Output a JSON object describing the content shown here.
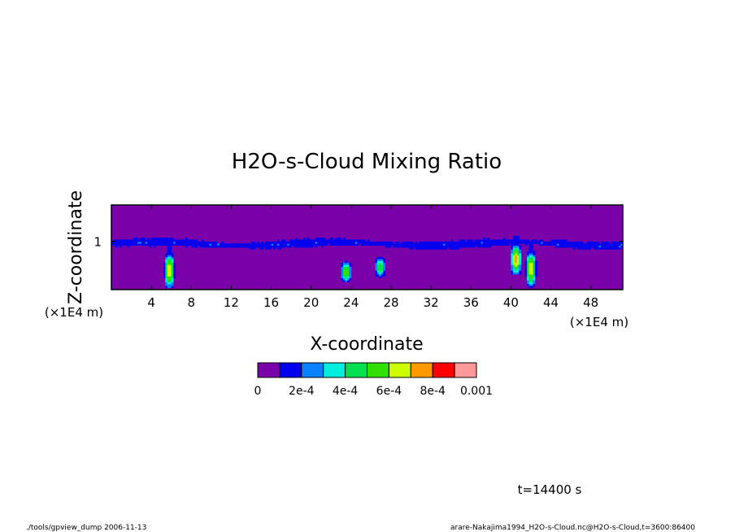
{
  "chart_data": {
    "type": "heatmap",
    "title": "H2O-s-Cloud Mixing Ratio",
    "xlabel": "X-coordinate",
    "ylabel": "Z-coordinate",
    "x_unit": "(×1E4 m)",
    "y_unit": "(×1E4 m)",
    "xlim": [
      0,
      51.2
    ],
    "ylim": [
      0,
      1.75
    ],
    "x_ticks": [
      4,
      8,
      12,
      16,
      20,
      24,
      28,
      32,
      36,
      40,
      44,
      48
    ],
    "y_ticks": [
      1
    ],
    "colorbar": {
      "levels": [
        0,
        0.0001,
        0.0002,
        0.0003,
        0.0004,
        0.0005,
        0.0006,
        0.0007,
        0.0008,
        0.0009,
        0.001
      ],
      "labels": [
        "0",
        "2e-4",
        "4e-4",
        "6e-4",
        "8e-4",
        "0.001"
      ],
      "label_values": [
        0,
        0.0002,
        0.0004,
        0.0006,
        0.0008,
        0.001
      ],
      "colors": [
        "#7a00aa",
        "#0000ee",
        "#0a82ff",
        "#00eedd",
        "#00e050",
        "#30e000",
        "#ccff00",
        "#ff9900",
        "#ff0000",
        "#ff9999"
      ]
    },
    "cloud_layer": {
      "z_center": 0.95,
      "z_halfwidth_max": 0.12,
      "typical_value": 0.00015
    },
    "cells": [
      {
        "x": 5.8,
        "z_bottom": 0.02,
        "z_top": 0.75,
        "max_value": 0.0007
      },
      {
        "x": 23.5,
        "z_bottom": 0.15,
        "z_top": 0.58,
        "max_value": 0.0006
      },
      {
        "x": 26.9,
        "z_bottom": 0.25,
        "z_top": 0.68,
        "max_value": 0.0005
      },
      {
        "x": 40.5,
        "z_bottom": 0.3,
        "z_top": 0.95,
        "max_value": 0.00075
      },
      {
        "x": 42.0,
        "z_bottom": 0.05,
        "z_top": 0.8,
        "max_value": 0.0007
      }
    ]
  },
  "annotations": {
    "time": "t=14400 s",
    "footer_left": "./tools/gpview_dump   2006-11-13",
    "footer_right": "arare-Nakajima1994_H2O-s-Cloud.nc@H2O-s-Cloud,t=3600:86400"
  }
}
